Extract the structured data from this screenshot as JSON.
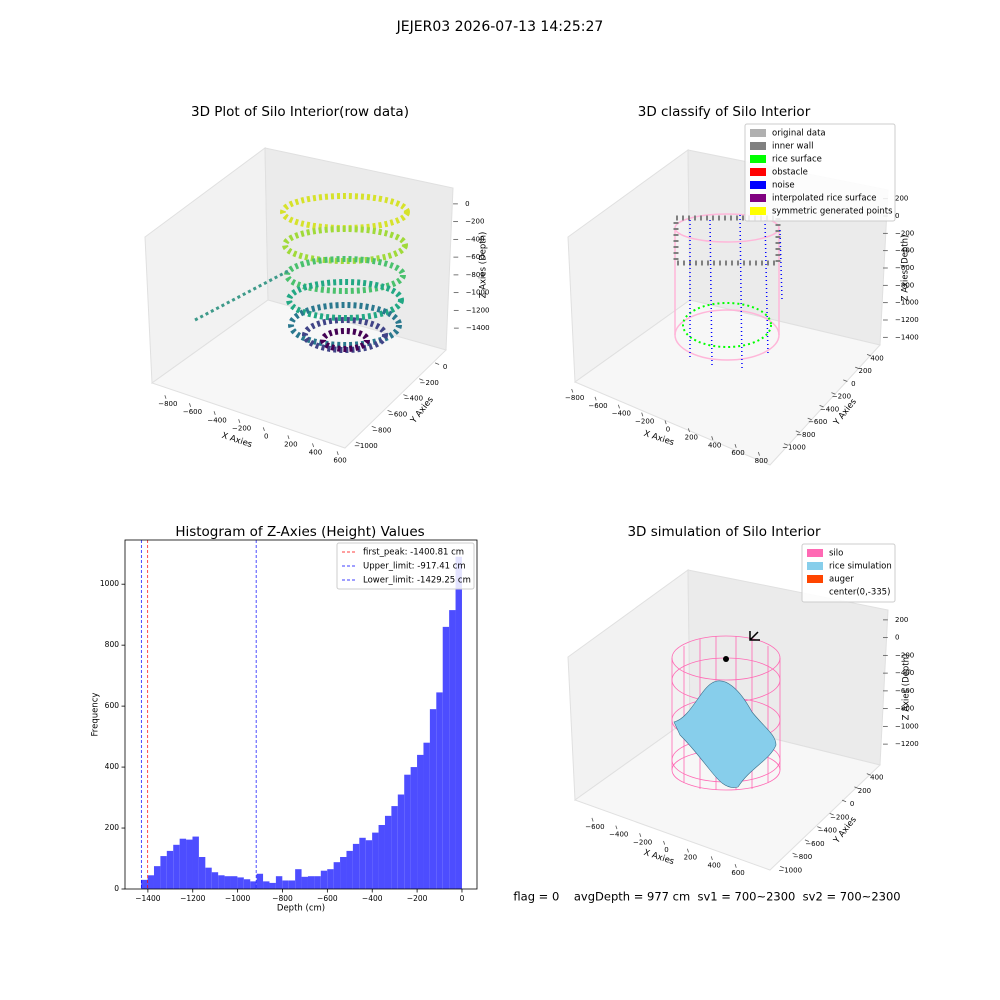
{
  "title": "JEJER03 2026-07-13 14:25:27",
  "footer": "flag = 0    avgDepth = 977 cm  sv1 = 700~2300  sv2 = 700~2300",
  "chart_data": [
    {
      "type": "scatter3d",
      "title": "3D Plot of Silo Interior(row data)",
      "xlabel": "X Axies",
      "ylabel": "Y Axies",
      "zlabel": "Z Axies (Depth)",
      "xlim": [
        -880,
        640
      ],
      "ylim": [
        -1100,
        100
      ],
      "zlim": [
        -1500,
        100
      ],
      "xticks": [
        {
          "value": -800,
          "label": "−800"
        },
        {
          "value": -600,
          "label": "−600"
        },
        {
          "value": -400,
          "label": "−400"
        },
        {
          "value": -200,
          "label": "−200"
        },
        0,
        200,
        400,
        600
      ],
      "yticks": [
        0,
        {
          "value": -200,
          "label": "−200"
        },
        {
          "value": -400,
          "label": "−400"
        },
        {
          "value": -600,
          "label": "−600"
        },
        {
          "value": -800,
          "label": "−800"
        },
        {
          "value": -1000,
          "label": "−1000"
        }
      ],
      "zticks": [
        0,
        {
          "value": -200,
          "label": "−200"
        },
        {
          "value": -400,
          "label": "−400"
        },
        {
          "value": -600,
          "label": "−600"
        },
        {
          "value": -800,
          "label": "−800"
        },
        {
          "value": -1000,
          "label": "−1000"
        },
        {
          "value": -1200,
          "label": "−1200"
        },
        {
          "value": -1400,
          "label": "−1400"
        }
      ]
    },
    {
      "type": "scatter3d",
      "title": "3D classify of Silo Interior",
      "xlabel": "X Axies",
      "ylabel": "Y Axies",
      "zlabel": "Z Axies (Depth)",
      "xlim": [
        -900,
        900
      ],
      "ylim": [
        -1100,
        500
      ],
      "zlim": [
        -1500,
        300
      ],
      "xticks": [
        {
          "value": -800,
          "label": "−800"
        },
        {
          "value": -600,
          "label": "−600"
        },
        {
          "value": -400,
          "label": "−400"
        },
        {
          "value": -200,
          "label": "−200"
        },
        0,
        200,
        400,
        600,
        800
      ],
      "yticks": [
        400,
        200,
        0,
        {
          "value": -200,
          "label": "−200"
        },
        {
          "value": -400,
          "label": "−400"
        },
        {
          "value": -600,
          "label": "−600"
        },
        {
          "value": -800,
          "label": "−800"
        },
        {
          "value": -1000,
          "label": "−1000"
        }
      ],
      "zticks": [
        200,
        0,
        {
          "value": -200,
          "label": "−200"
        },
        {
          "value": -400,
          "label": "−400"
        },
        {
          "value": -600,
          "label": "−600"
        },
        {
          "value": -800,
          "label": "−800"
        },
        {
          "value": -1000,
          "label": "−1000"
        },
        {
          "value": -1200,
          "label": "−1200"
        },
        {
          "value": -1400,
          "label": "−1400"
        }
      ],
      "legend": [
        {
          "name": "original data",
          "color": "#b0b0b0"
        },
        {
          "name": "inner wall",
          "color": "#808080"
        },
        {
          "name": "rice surface",
          "color": "#00ff00"
        },
        {
          "name": "obstacle",
          "color": "#ff0000"
        },
        {
          "name": "noise",
          "color": "#0000ff"
        },
        {
          "name": "interpolated rice surface",
          "color": "#800080"
        },
        {
          "name": "symmetric generated points",
          "color": "#ffff00"
        }
      ]
    },
    {
      "type": "histogram",
      "title": "Histogram of Z-Axies (Height) Values",
      "xlabel": "Depth (cm)",
      "ylabel": "Frequency",
      "color": "#4d4dff",
      "bins": [
        -1430,
        -1401.4,
        -1372.8,
        -1344.2,
        -1315.6,
        -1287,
        -1258.4,
        -1229.8,
        -1201.2,
        -1172.6,
        -1144,
        -1115.4,
        -1086.8,
        -1058.2,
        -1029.6,
        -1001,
        -972.4,
        -943.8,
        -915.2,
        -886.6,
        -858,
        -829.4,
        -800.8,
        -772.2,
        -743.6,
        -715,
        -686.4,
        -657.8,
        -629.2,
        -600.6,
        -572,
        -543.4,
        -514.8,
        -486.2,
        -457.6,
        -429,
        -400.4,
        -371.8,
        -343.2,
        -314.6,
        -286,
        -257.4,
        -228.8,
        -200.2,
        -171.6,
        -143,
        -114.4,
        -85.8,
        -57.2,
        -28.6,
        0
      ],
      "counts": [
        30,
        45,
        75,
        108,
        125,
        145,
        165,
        162,
        172,
        105,
        70,
        55,
        45,
        42,
        42,
        38,
        32,
        25,
        50,
        25,
        20,
        42,
        28,
        28,
        65,
        40,
        42,
        42,
        60,
        65,
        88,
        105,
        125,
        148,
        168,
        160,
        185,
        210,
        240,
        272,
        310,
        375,
        400,
        440,
        480,
        590,
        645,
        860,
        915,
        1090
      ],
      "xlim": [
        -1502,
        67
      ],
      "ylim": [
        0,
        1145
      ],
      "xticks": [
        {
          "value": -1400,
          "label": "−1400"
        },
        {
          "value": -1200,
          "label": "−1200"
        },
        {
          "value": -1000,
          "label": "−1000"
        },
        {
          "value": -800,
          "label": "−800"
        },
        {
          "value": -600,
          "label": "−600"
        },
        {
          "value": -400,
          "label": "−400"
        },
        {
          "value": -200,
          "label": "−200"
        },
        0
      ],
      "yticks": [
        0,
        200,
        400,
        600,
        800,
        1000
      ],
      "vlines": [
        {
          "name": "first_peak: -1400.81 cm",
          "value": -1400.81,
          "color": "#ff0000"
        },
        {
          "name": "Upper_limit: -917.41 cm",
          "value": -917.41,
          "color": "#0000ff"
        },
        {
          "name": "Lower_limit: -1429.25 cm",
          "value": -1429.25,
          "color": "#0000ff"
        }
      ]
    },
    {
      "type": "surface3d",
      "title": "3D simulation of Silo Interior",
      "xlabel": "X Axies",
      "ylabel": "Y Axies",
      "zlabel": "Z Axies (Depth)",
      "xlim": [
        -700,
        700
      ],
      "ylim": [
        -1100,
        500
      ],
      "zlim": [
        -1300,
        300
      ],
      "xticks": [
        {
          "value": -600,
          "label": "−600"
        },
        {
          "value": -400,
          "label": "−400"
        },
        {
          "value": -200,
          "label": "−200"
        },
        0,
        200,
        400,
        600
      ],
      "yticks": [
        400,
        200,
        0,
        {
          "value": -200,
          "label": "−200"
        },
        {
          "value": -400,
          "label": "−400"
        },
        {
          "value": -600,
          "label": "−600"
        },
        {
          "value": -800,
          "label": "−800"
        },
        {
          "value": -1000,
          "label": "−1000"
        }
      ],
      "zticks": [
        200,
        0,
        {
          "value": -200,
          "label": "−200"
        },
        {
          "value": -400,
          "label": "−400"
        },
        {
          "value": -600,
          "label": "−600"
        },
        {
          "value": -800,
          "label": "−800"
        },
        {
          "value": -1000,
          "label": "−1000"
        },
        {
          "value": -1200,
          "label": "−1200"
        }
      ],
      "legend": [
        {
          "name": "silo",
          "color": "#ff69b4"
        },
        {
          "name": "rice simulation",
          "color": "#87ceeb"
        },
        {
          "name": "auger",
          "color": "#ff4500"
        },
        {
          "name": "center(0,-335)"
        }
      ]
    }
  ]
}
